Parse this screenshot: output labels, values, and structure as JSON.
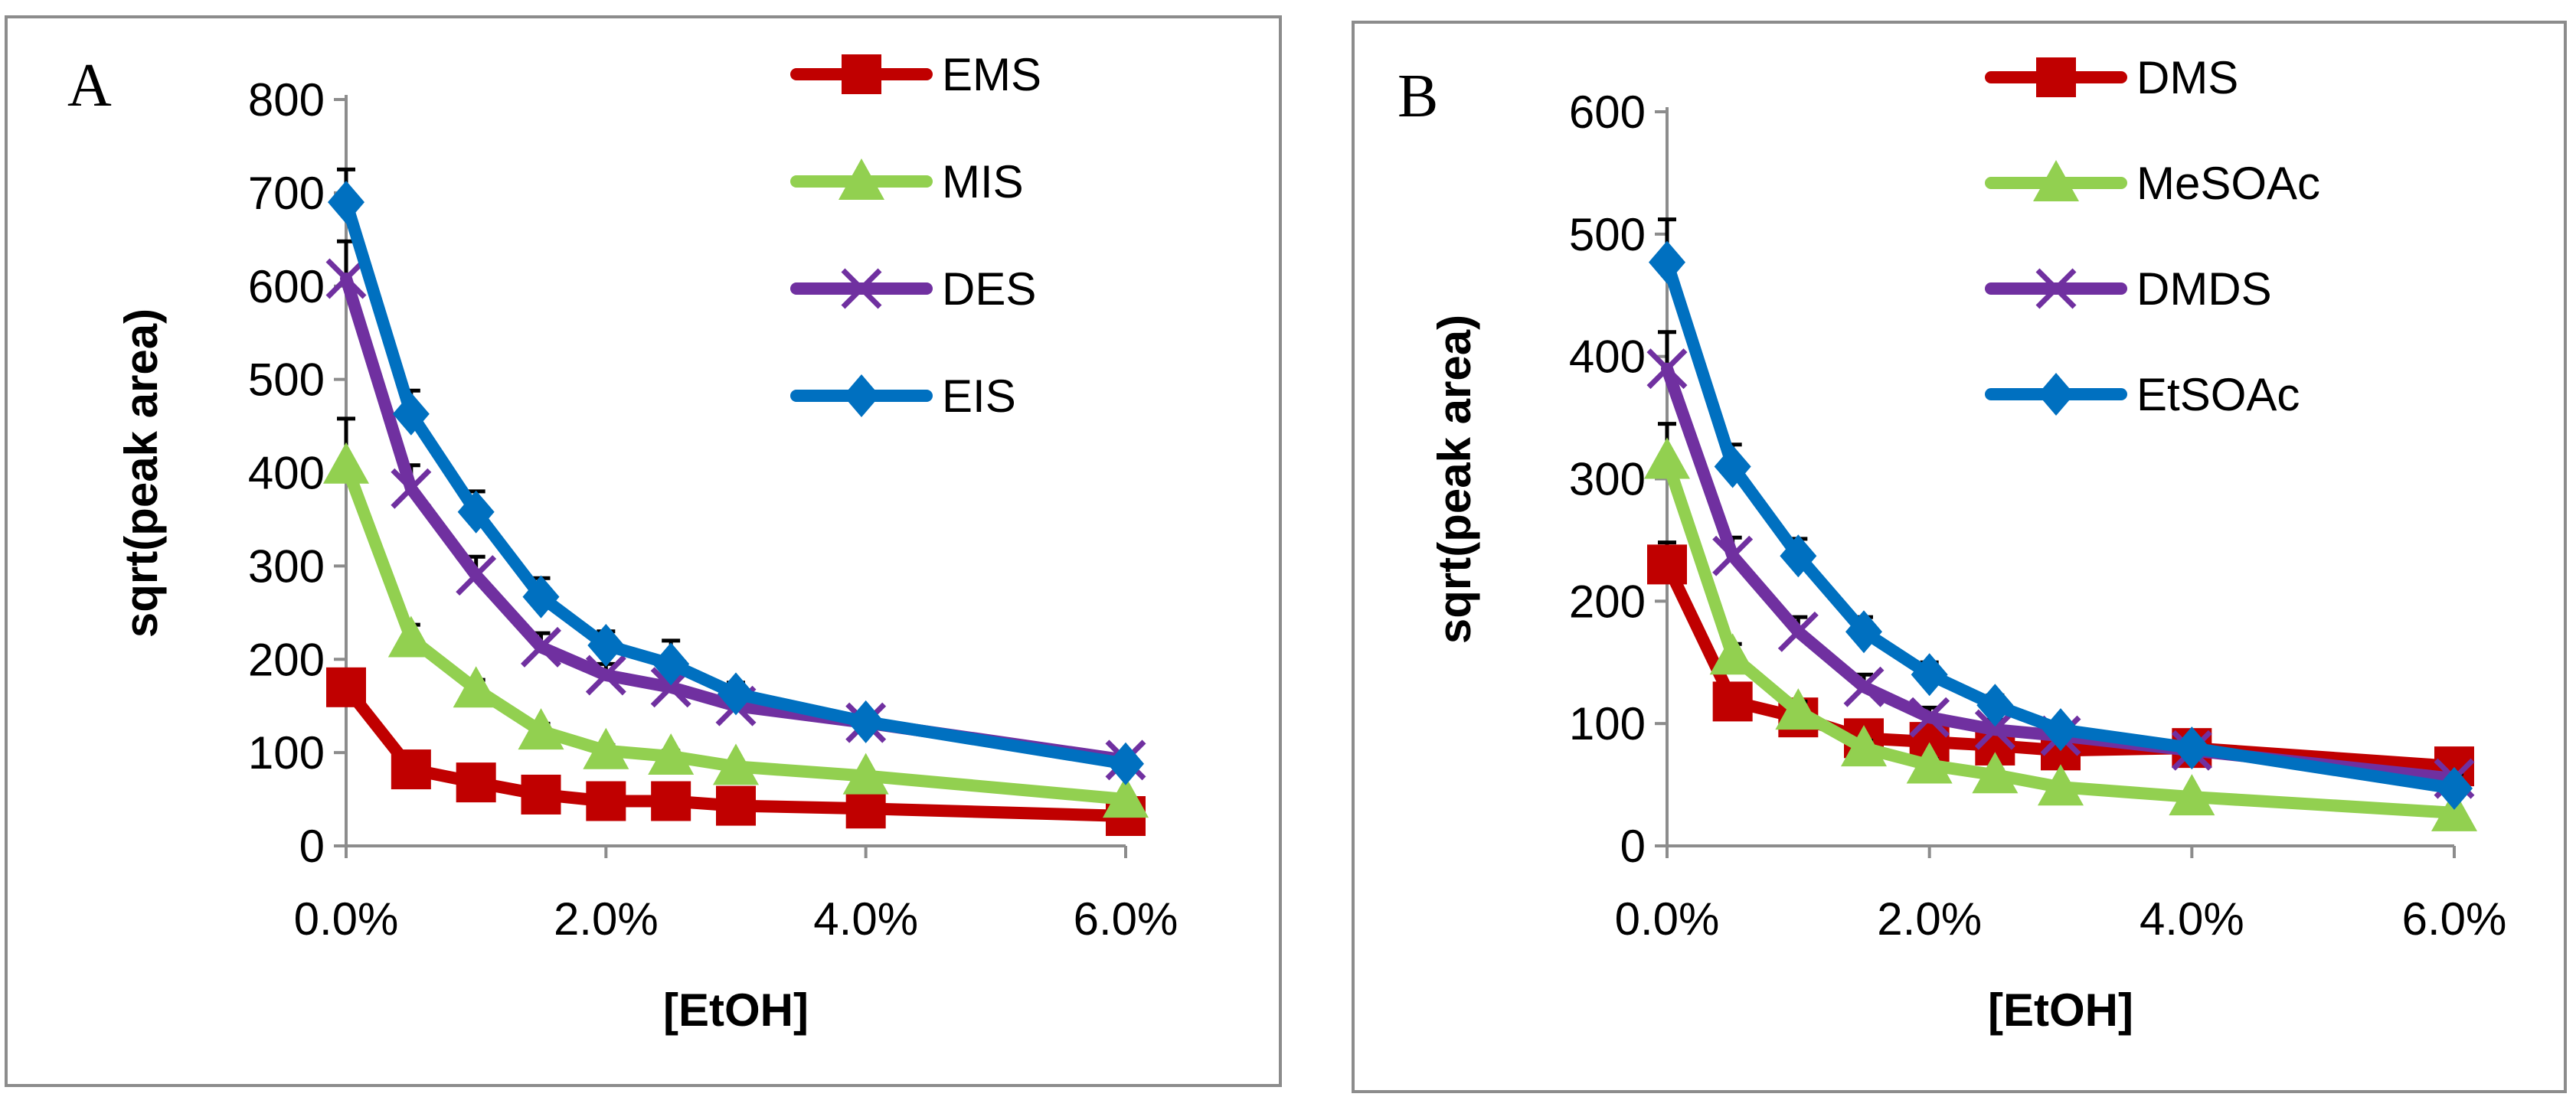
{
  "chart_data": [
    {
      "type": "line",
      "panel_label": "A",
      "xlabel": "[EtOH]",
      "ylabel": "sqrt(peak area)",
      "x": [
        0.0,
        0.5,
        1.0,
        1.5,
        2.0,
        2.5,
        3.0,
        4.0,
        6.0
      ],
      "xlim": [
        0,
        6
      ],
      "ylim": [
        0,
        800
      ],
      "x_ticks": [
        0,
        2,
        4,
        6
      ],
      "x_tick_labels": [
        "0.0%",
        "2.0%",
        "4.0%",
        "6.0%"
      ],
      "y_ticks": [
        0,
        100,
        200,
        300,
        400,
        500,
        600,
        700,
        800
      ],
      "y_tick_labels": [
        "0",
        "100",
        "200",
        "300",
        "400",
        "500",
        "600",
        "700",
        "800"
      ],
      "legend_position": "top-right",
      "series": [
        {
          "name": "EMS",
          "color": "#c00000",
          "marker": "square",
          "values": [
            170,
            82,
            68,
            55,
            48,
            48,
            43,
            40,
            32
          ],
          "errors": [
            8,
            6,
            5,
            4,
            4,
            4,
            4,
            3,
            3
          ]
        },
        {
          "name": "MIS",
          "color": "#92d050",
          "marker": "triangle",
          "values": [
            408,
            222,
            168,
            123,
            102,
            96,
            85,
            75,
            50
          ],
          "errors": [
            50,
            15,
            10,
            8,
            6,
            6,
            5,
            5,
            4
          ]
        },
        {
          "name": "DES",
          "color": "#7030a0",
          "marker": "x",
          "values": [
            608,
            383,
            290,
            213,
            183,
            170,
            150,
            132,
            92
          ],
          "errors": [
            40,
            25,
            20,
            15,
            12,
            12,
            10,
            8,
            6
          ]
        },
        {
          "name": "EIS",
          "color": "#0070c0",
          "marker": "diamond",
          "values": [
            690,
            463,
            358,
            267,
            215,
            195,
            163,
            133,
            88
          ],
          "errors": [
            35,
            25,
            22,
            20,
            15,
            25,
            12,
            10,
            6
          ]
        }
      ]
    },
    {
      "type": "line",
      "panel_label": "B",
      "xlabel": "[EtOH]",
      "ylabel": "sqrt(peak area)",
      "x": [
        0.0,
        0.5,
        1.0,
        1.5,
        2.0,
        2.5,
        3.0,
        4.0,
        6.0
      ],
      "xlim": [
        0,
        6
      ],
      "ylim": [
        0,
        600
      ],
      "x_ticks": [
        0,
        2,
        4,
        6
      ],
      "x_tick_labels": [
        "0.0%",
        "2.0%",
        "4.0%",
        "6.0%"
      ],
      "y_ticks": [
        0,
        100,
        200,
        300,
        400,
        500,
        600
      ],
      "y_tick_labels": [
        "0",
        "100",
        "200",
        "300",
        "400",
        "500",
        "600"
      ],
      "legend_position": "top-right",
      "series": [
        {
          "name": "DMS",
          "color": "#c00000",
          "marker": "square",
          "values": [
            230,
            118,
            105,
            88,
            85,
            82,
            78,
            80,
            65
          ],
          "errors": [
            18,
            8,
            6,
            5,
            5,
            5,
            4,
            4,
            4
          ]
        },
        {
          "name": "MeSOAc",
          "color": "#92d050",
          "marker": "triangle",
          "values": [
            315,
            155,
            110,
            80,
            66,
            58,
            48,
            40,
            27
          ],
          "errors": [
            30,
            10,
            8,
            6,
            5,
            4,
            4,
            3,
            3
          ]
        },
        {
          "name": "DMDS",
          "color": "#7030a0",
          "marker": "x",
          "values": [
            390,
            237,
            175,
            130,
            105,
            95,
            90,
            78,
            55
          ],
          "errors": [
            30,
            15,
            12,
            10,
            8,
            8,
            6,
            5,
            4
          ]
        },
        {
          "name": "EtSOAc",
          "color": "#0070c0",
          "marker": "diamond",
          "values": [
            477,
            310,
            237,
            175,
            140,
            115,
            95,
            80,
            47
          ],
          "errors": [
            35,
            18,
            14,
            12,
            10,
            8,
            7,
            6,
            4
          ]
        }
      ]
    }
  ]
}
